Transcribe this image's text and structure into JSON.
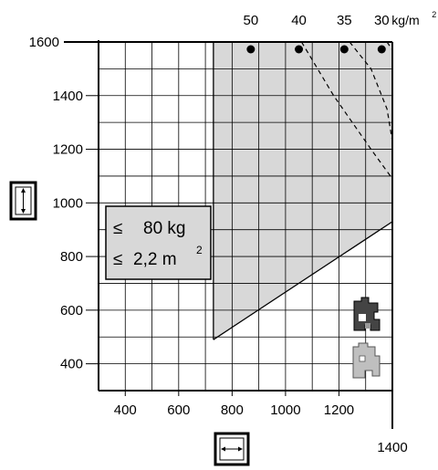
{
  "chart_data": {
    "type": "area",
    "x_ticks": [
      "400",
      "600",
      "800",
      "1000",
      "1200"
    ],
    "x_end_label": "1400",
    "y_ticks": [
      "400",
      "600",
      "800",
      "1000",
      "1200",
      "1400"
    ],
    "y_top_label": "1600",
    "xlim": [
      300,
      1400
    ],
    "ylim": [
      300,
      1600
    ],
    "grid": true,
    "permissible_region": [
      [
        730,
        490
      ],
      [
        730,
        1600
      ],
      [
        1400,
        1600
      ],
      [
        1400,
        930
      ]
    ],
    "weight_labels": [
      {
        "label": "50",
        "x": 870
      },
      {
        "label": "40",
        "x": 1050
      },
      {
        "label": "35",
        "x": 1220
      },
      {
        "label": "30",
        "x": 1360
      }
    ],
    "weight_unit_label": "kg/m",
    "weight_unit_sup": "2",
    "weight_limit_curves": [
      {
        "name": "40 kg/m²",
        "points": [
          [
            1060,
            1600
          ],
          [
            1180,
            1400
          ],
          [
            1320,
            1200
          ],
          [
            1400,
            1090
          ]
        ]
      },
      {
        "name": "35 kg/m²",
        "points": [
          [
            1240,
            1600
          ],
          [
            1320,
            1500
          ],
          [
            1380,
            1350
          ],
          [
            1400,
            1230
          ]
        ]
      },
      {
        "name": "30 kg/m²",
        "points": [
          [
            1380,
            1600
          ],
          [
            1400,
            1570
          ]
        ]
      }
    ],
    "info_box": {
      "line1_sym": "≤",
      "line1_val": "80 kg",
      "line2_sym": "≤",
      "line2_val": "2,2 m",
      "line2_sup": "2"
    },
    "y_axis_icon": "sash-height-icon",
    "x_axis_icon": "sash-width-icon",
    "profile_icons": [
      "window-profile-dark-icon",
      "window-profile-light-icon"
    ],
    "colors": {
      "region": "#d8d8d8",
      "grid": "#000000",
      "curve": "#000000"
    }
  }
}
